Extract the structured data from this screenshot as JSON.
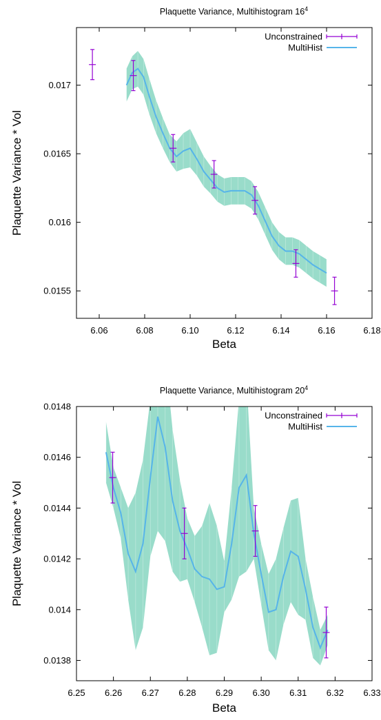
{
  "chart_data": [
    {
      "type": "line",
      "title": "Plaquette Variance, Multihistogram 16",
      "title_sup": "4",
      "xlabel": "Beta",
      "ylabel": "Plaquette Variance * Vol",
      "xlim": [
        6.05,
        6.18
      ],
      "ylim": [
        0.0153,
        0.01742
      ],
      "xticks": [
        6.06,
        6.08,
        6.1,
        6.12,
        6.14,
        6.16,
        6.18
      ],
      "yticks": [
        0.0155,
        0.016,
        0.0165,
        0.017
      ],
      "legend_position": "top-right",
      "colors": {
        "unconstrained": "#9400d3",
        "multihist_line": "#56b4e9",
        "band": "#8ed8c4"
      },
      "series": [
        {
          "name": "Unconstrained",
          "kind": "errorbars",
          "points": [
            {
              "x": 6.057,
              "y": 0.01715,
              "err": 0.00011
            },
            {
              "x": 6.075,
              "y": 0.01707,
              "err": 0.00011
            },
            {
              "x": 6.0925,
              "y": 0.01654,
              "err": 0.0001
            },
            {
              "x": 6.1105,
              "y": 0.01635,
              "err": 0.0001
            },
            {
              "x": 6.1285,
              "y": 0.01616,
              "err": 0.0001
            },
            {
              "x": 6.1465,
              "y": 0.0157,
              "err": 0.0001
            },
            {
              "x": 6.1635,
              "y": 0.0155,
              "err": 0.0001
            }
          ]
        },
        {
          "name": "MultiHist",
          "kind": "line-with-band",
          "x": [
            6.072,
            6.0745,
            6.077,
            6.0795,
            6.082,
            6.085,
            6.088,
            6.091,
            6.094,
            6.097,
            6.1,
            6.103,
            6.106,
            6.109,
            6.112,
            6.115,
            6.118,
            6.121,
            6.124,
            6.127,
            6.13,
            6.133,
            6.136,
            6.139,
            6.142,
            6.145,
            6.148,
            6.151,
            6.154,
            6.157,
            6.16
          ],
          "y": [
            0.017,
            0.01709,
            0.01712,
            0.01706,
            0.01692,
            0.01677,
            0.01665,
            0.01654,
            0.01648,
            0.01652,
            0.01654,
            0.01646,
            0.01637,
            0.01631,
            0.01625,
            0.01622,
            0.01623,
            0.01623,
            0.01623,
            0.0162,
            0.01612,
            0.01601,
            0.0159,
            0.01583,
            0.01579,
            0.01579,
            0.01577,
            0.01573,
            0.01569,
            0.01566,
            0.01563
          ],
          "band_halfwidth": [
            0.00012,
            0.00012,
            0.00013,
            0.00013,
            0.00013,
            0.00012,
            0.00011,
            0.0001,
            0.00011,
            0.00013,
            0.00014,
            0.00012,
            0.00011,
            0.0001,
            0.0001,
            0.0001,
            0.0001,
            0.0001,
            0.0001,
            0.0001,
            0.0001,
            0.0001,
            0.0001,
            0.0001,
            0.0001,
            0.0001,
            0.0001,
            0.0001,
            0.0001,
            0.0001,
            0.0001
          ]
        }
      ]
    },
    {
      "type": "line",
      "title": "Plaquette Variance, Multihistogram 20",
      "title_sup": "4",
      "xlabel": "Beta",
      "ylabel": "Plaquette Variance * Vol",
      "xlim": [
        6.25,
        6.33
      ],
      "ylim": [
        0.01372,
        0.0148
      ],
      "xticks": [
        6.25,
        6.26,
        6.27,
        6.28,
        6.29,
        6.3,
        6.31,
        6.32,
        6.33
      ],
      "yticks": [
        0.0138,
        0.014,
        0.0142,
        0.0144,
        0.0146,
        0.0148
      ],
      "legend_position": "top-right",
      "colors": {
        "unconstrained": "#9400d3",
        "multihist_line": "#56b4e9",
        "band": "#8ed8c4"
      },
      "series": [
        {
          "name": "Unconstrained",
          "kind": "errorbars",
          "points": [
            {
              "x": 6.2598,
              "y": 0.01452,
              "err": 0.0001
            },
            {
              "x": 6.2792,
              "y": 0.0143,
              "err": 0.0001
            },
            {
              "x": 6.2984,
              "y": 0.01431,
              "err": 0.0001
            },
            {
              "x": 6.3176,
              "y": 0.01391,
              "err": 0.0001
            }
          ]
        },
        {
          "name": "MultiHist",
          "kind": "line-with-band",
          "x": [
            6.258,
            6.26,
            6.262,
            6.264,
            6.266,
            6.268,
            6.27,
            6.272,
            6.274,
            6.276,
            6.278,
            6.28,
            6.282,
            6.284,
            6.286,
            6.288,
            6.29,
            6.292,
            6.294,
            6.296,
            6.298,
            6.3,
            6.302,
            6.304,
            6.306,
            6.308,
            6.31,
            6.312,
            6.314,
            6.316,
            6.318
          ],
          "y": [
            0.01462,
            0.01448,
            0.01438,
            0.01422,
            0.01415,
            0.01426,
            0.01452,
            0.01476,
            0.01464,
            0.01443,
            0.01431,
            0.01424,
            0.01416,
            0.01413,
            0.01412,
            0.01408,
            0.01409,
            0.01426,
            0.01448,
            0.01453,
            0.0143,
            0.01414,
            0.01399,
            0.014,
            0.01413,
            0.01423,
            0.01421,
            0.01408,
            0.01393,
            0.01385,
            0.01392
          ],
          "band_halfwidth": [
            0.00012,
            8e-05,
            0.0001,
            0.00018,
            0.00031,
            0.00033,
            0.00031,
            0.00045,
            0.00037,
            0.00028,
            0.0002,
            0.00012,
            0.00013,
            0.0002,
            0.0003,
            0.00025,
            0.0001,
            0.00022,
            0.00035,
            0.00038,
            0.0001,
            0.00012,
            0.00015,
            0.0002,
            0.00019,
            0.0002,
            0.00023,
            0.00012,
            0.00012,
            7e-05,
            6e-05
          ]
        }
      ]
    }
  ]
}
